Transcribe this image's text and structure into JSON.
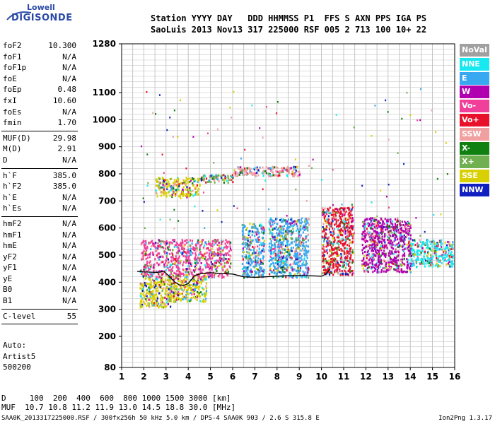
{
  "logo": {
    "line1": "Lowell",
    "line2": "DIGISONDE"
  },
  "header": {
    "line1": "Station YYYY DAY   DDD HHMMSS P1  FFS S AXN PPS IGA PS",
    "line2": "SaoLuis 2013 Nov13 317 225000 RSF 005 2 713 100 10+ 22"
  },
  "params": {
    "group1": [
      {
        "label": "foF2",
        "value": "10.300"
      },
      {
        "label": "foF1",
        "value": "N/A"
      },
      {
        "label": "foF1p",
        "value": "N/A"
      },
      {
        "label": "foE",
        "value": "N/A"
      },
      {
        "label": "foEp",
        "value": "0.48"
      },
      {
        "label": "fxI",
        "value": "10.60"
      },
      {
        "label": "foEs",
        "value": "N/A"
      },
      {
        "label": "fmin",
        "value": "1.70"
      }
    ],
    "group2": [
      {
        "label": "MUF(D)",
        "value": "29.98"
      },
      {
        "label": "M(D)",
        "value": "2.91"
      },
      {
        "label": "D",
        "value": "N/A"
      }
    ],
    "group3": [
      {
        "label": "h`F",
        "value": "385.0"
      },
      {
        "label": "h`F2",
        "value": "385.0"
      },
      {
        "label": "h`E",
        "value": "N/A"
      },
      {
        "label": "h`Es",
        "value": "N/A"
      }
    ],
    "group4": [
      {
        "label": "hmF2",
        "value": "N/A"
      },
      {
        "label": "hmF1",
        "value": "N/A"
      },
      {
        "label": "hmE",
        "value": "N/A"
      },
      {
        "label": "yF2",
        "value": "N/A"
      },
      {
        "label": "yF1",
        "value": "N/A"
      },
      {
        "label": "yE",
        "value": "N/A"
      },
      {
        "label": "B0",
        "value": "N/A"
      },
      {
        "label": "B1",
        "value": "N/A"
      }
    ],
    "group5": [
      {
        "label": "C-level",
        "value": "55"
      }
    ]
  },
  "auto": {
    "line1": "Auto:",
    "line2": "Artist5",
    "line3": "500200"
  },
  "legend": [
    {
      "label": "NoVal",
      "color": "#a0a0a0"
    },
    {
      "label": "NNE",
      "color": "#18e8f0"
    },
    {
      "label": "E",
      "color": "#38a8f0"
    },
    {
      "label": "W",
      "color": "#b000b0"
    },
    {
      "label": "Vo-",
      "color": "#f0409a"
    },
    {
      "label": "Vo+",
      "color": "#e8102a"
    },
    {
      "label": "SSW",
      "color": "#f0a0a0"
    },
    {
      "label": "X-",
      "color": "#108010"
    },
    {
      "label": "X+",
      "color": "#70b050"
    },
    {
      "label": "SSE",
      "color": "#d8d000"
    },
    {
      "label": "NNW",
      "color": "#1020c0"
    }
  ],
  "footer": {
    "d_row": "D     100  200  400  600  800 1000 1500 3000 [km]",
    "muf_row": "MUF  10.7 10.8 11.2 11.9 13.0 14.5 18.8 30.0 [MHz]",
    "file": "SAA0K_2013317225000.RSF / 300fx256h 50 kHz 5.0 km / DPS-4 SAA0K 903 / 2.6 S 315.8 E",
    "version": "Ion2Png 1.3.17"
  },
  "chart_data": {
    "type": "scatter",
    "title": "",
    "xlabel": "",
    "ylabel": "",
    "xlim": [
      1,
      16
    ],
    "ylim": [
      80,
      1280
    ],
    "x_ticks": [
      "1",
      "2",
      "3",
      "4",
      "5",
      "6",
      "7",
      "8",
      "9",
      "10",
      "11",
      "12",
      "13",
      "14",
      "15",
      "16"
    ],
    "y_ticks": [
      "80",
      "200",
      "300",
      "400",
      "500",
      "600",
      "700",
      "800",
      "900",
      "1000",
      "1100",
      "1280"
    ],
    "grid": true,
    "trace": {
      "x": [
        1.7,
        2.0,
        2.3,
        2.6,
        2.9,
        3.1,
        3.4,
        3.6,
        3.8,
        4.0,
        4.3,
        4.6,
        5.0,
        5.5,
        6.0,
        6.5,
        7.0,
        7.5,
        8.0,
        8.5,
        9.0,
        9.5,
        10.0,
        10.2,
        10.4
      ],
      "y": [
        440,
        438,
        437,
        436,
        440,
        425,
        400,
        390,
        388,
        395,
        425,
        432,
        435,
        432,
        430,
        420,
        418,
        420,
        422,
        424,
        425,
        424,
        422,
        430,
        450
      ]
    },
    "echo_clusters": [
      {
        "x_range": [
          1.8,
          3.2
        ],
        "y_range": [
          310,
          420
        ],
        "color": "#d8d000"
      },
      {
        "x_range": [
          3.0,
          4.8
        ],
        "y_range": [
          330,
          430
        ],
        "color": "#d8d000"
      },
      {
        "x_range": [
          1.8,
          5.9
        ],
        "y_range": [
          420,
          560
        ],
        "color": "#f0409a"
      },
      {
        "x_range": [
          2.5,
          4.5
        ],
        "y_range": [
          720,
          790
        ],
        "color": "#d8d000"
      },
      {
        "x_range": [
          4.5,
          6.0
        ],
        "y_range": [
          770,
          800
        ],
        "color": "#70b050"
      },
      {
        "x_range": [
          6.4,
          7.4
        ],
        "y_range": [
          420,
          620
        ],
        "color": "#38a8f0"
      },
      {
        "x_range": [
          7.6,
          9.4
        ],
        "y_range": [
          420,
          640
        ],
        "color": "#38a8f0"
      },
      {
        "x_range": [
          10.0,
          11.4
        ],
        "y_range": [
          430,
          680
        ],
        "color": "#e8102a"
      },
      {
        "x_range": [
          11.8,
          14.0
        ],
        "y_range": [
          440,
          640
        ],
        "color": "#b000b0"
      },
      {
        "x_range": [
          14.0,
          15.9
        ],
        "y_range": [
          460,
          560
        ],
        "color": "#18e8f0"
      },
      {
        "x_range": [
          6.0,
          9.0
        ],
        "y_range": [
          795,
          830
        ],
        "color": "#f0a0a0"
      }
    ]
  }
}
